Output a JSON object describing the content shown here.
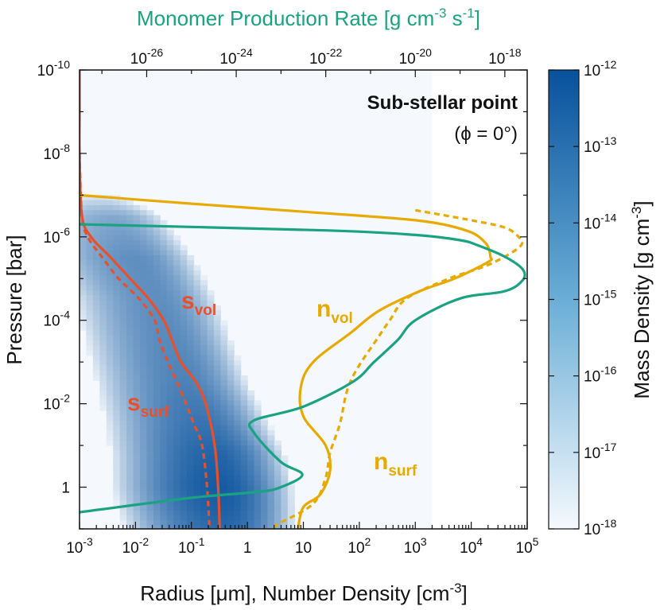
{
  "chart_data": {
    "type": "line",
    "annotation_title": "Sub-stellar point",
    "annotation_subtitle": "(ϕ = 0°)",
    "xlabel_bottom": "Radius [μm], Number Density [cm-3]",
    "xlabel_bottom_parts": {
      "main": "Radius [μm], Number Density [cm",
      "sup": "-3",
      "end": "]"
    },
    "xlabel_top_parts": {
      "main": "Monomer Production Rate [g cm",
      "sup1": "-3",
      "mid": " s",
      "sup2": "-1",
      "end": "]"
    },
    "ylabel": "Pressure [bar]",
    "colorbar_label_parts": {
      "main": "Mass Density [g cm",
      "sup": "-3",
      "end": "]"
    },
    "x_bottom": {
      "scale": "log",
      "range": [
        0.001,
        100000
      ],
      "ticks": [
        {
          "value": 0.001,
          "base": "10",
          "exp": "-3"
        },
        {
          "value": 0.01,
          "base": "10",
          "exp": "-2"
        },
        {
          "value": 0.1,
          "base": "10",
          "exp": "-1"
        },
        {
          "value": 1,
          "base": "1",
          "exp": ""
        },
        {
          "value": 10,
          "base": "10",
          "exp": ""
        },
        {
          "value": 100,
          "base": "10",
          "exp": "2"
        },
        {
          "value": 1000,
          "base": "10",
          "exp": "3"
        },
        {
          "value": 10000,
          "base": "10",
          "exp": "4"
        },
        {
          "value": 100000,
          "base": "10",
          "exp": "5"
        }
      ]
    },
    "x_top": {
      "scale": "log",
      "range": [
        3.16e-28,
        3.16e-18
      ],
      "ticks": [
        {
          "value": 1e-26,
          "base": "10",
          "exp": "-26"
        },
        {
          "value": 1e-24,
          "base": "10",
          "exp": "-24"
        },
        {
          "value": 1e-22,
          "base": "10",
          "exp": "-22"
        },
        {
          "value": 1e-20,
          "base": "10",
          "exp": "-20"
        },
        {
          "value": 1e-18,
          "base": "10",
          "exp": "-18"
        }
      ]
    },
    "y": {
      "scale": "log",
      "inverted": true,
      "range": [
        1e-10,
        10
      ],
      "ticks": [
        {
          "value": 1e-10,
          "base": "10",
          "exp": "-10"
        },
        {
          "value": 1e-08,
          "base": "10",
          "exp": "-8"
        },
        {
          "value": 1e-06,
          "base": "10",
          "exp": "-6"
        },
        {
          "value": 0.0001,
          "base": "10",
          "exp": "-4"
        },
        {
          "value": 0.01,
          "base": "10",
          "exp": "-2"
        },
        {
          "value": 1,
          "base": "1",
          "exp": ""
        }
      ]
    },
    "colorbar": {
      "scale": "log",
      "range": [
        1e-18,
        1e-12
      ],
      "colors": [
        "#f5f9fd",
        "#08519c"
      ],
      "ticks": [
        {
          "value": 1e-12,
          "base": "10",
          "exp": "-12"
        },
        {
          "value": 1e-13,
          "base": "10",
          "exp": "-13"
        },
        {
          "value": 1e-14,
          "base": "10",
          "exp": "-14"
        },
        {
          "value": 1e-15,
          "base": "10",
          "exp": "-15"
        },
        {
          "value": 1e-16,
          "base": "10",
          "exp": "-16"
        },
        {
          "value": 1e-17,
          "base": "10",
          "exp": "-17"
        },
        {
          "value": 1e-18,
          "base": "10",
          "exp": "-18"
        }
      ]
    },
    "heatmap": {
      "bin_size_dex": 0.12,
      "floor_value": 1e-18,
      "x_range_log": [
        -3,
        3.3
      ],
      "p_range_log": [
        -10,
        1
      ],
      "ridge": [
        {
          "logp": -7.2,
          "logr": -2.8,
          "logrho": -18.5
        },
        {
          "logp": -6.5,
          "logr": -2.4,
          "logrho": -15.5
        },
        {
          "logp": -5.5,
          "logr": -2.0,
          "logrho": -14.5
        },
        {
          "logp": -4.5,
          "logr": -1.6,
          "logrho": -14.5
        },
        {
          "logp": -3.5,
          "logr": -1.35,
          "logrho": -14.3
        },
        {
          "logp": -2.5,
          "logr": -1.1,
          "logrho": -14.0
        },
        {
          "logp": -1.5,
          "logr": -0.8,
          "logrho": -13.4
        },
        {
          "logp": -0.8,
          "logr": -0.6,
          "logrho": -12.8
        },
        {
          "logp": 0.0,
          "logr": -0.5,
          "logrho": -12.4
        },
        {
          "logp": 0.5,
          "logr": -0.45,
          "logrho": -12.6
        },
        {
          "logp": 1.0,
          "logr": -0.4,
          "logrho": -13.0
        }
      ]
    },
    "series": [
      {
        "label": "s",
        "sub": "vol",
        "color": "#e8502a",
        "dash": "solid",
        "axis": "bottom",
        "points": [
          [
            0.001,
            1e-10
          ],
          [
            0.001,
            1e-09
          ],
          [
            0.001,
            1e-08
          ],
          [
            0.0011,
            3e-07
          ],
          [
            0.0016,
            1e-06
          ],
          [
            0.0035,
            3e-06
          ],
          [
            0.008,
            1e-05
          ],
          [
            0.017,
            3e-05
          ],
          [
            0.032,
            0.0001
          ],
          [
            0.045,
            0.0003
          ],
          [
            0.065,
            0.001
          ],
          [
            0.12,
            0.003
          ],
          [
            0.18,
            0.01
          ],
          [
            0.26,
            0.1
          ],
          [
            0.3,
            1
          ],
          [
            0.32,
            10
          ]
        ]
      },
      {
        "label": "s",
        "sub": "surf",
        "color": "#e8502a",
        "dash": "dotted",
        "axis": "bottom",
        "points": [
          [
            0.001,
            1e-08
          ],
          [
            0.0011,
            3e-07
          ],
          [
            0.0014,
            1e-06
          ],
          [
            0.0025,
            3e-06
          ],
          [
            0.005,
            1e-05
          ],
          [
            0.0115,
            3e-05
          ],
          [
            0.022,
            0.0001
          ],
          [
            0.027,
            0.0003
          ],
          [
            0.038,
            0.001
          ],
          [
            0.055,
            0.003
          ],
          [
            0.08,
            0.01
          ],
          [
            0.11,
            0.03
          ],
          [
            0.155,
            0.1
          ],
          [
            0.19,
            1
          ],
          [
            0.21,
            10
          ]
        ]
      },
      {
        "label": "n",
        "sub": "vol",
        "color": "#e8aa00",
        "dash": "solid",
        "axis": "bottom",
        "points": [
          [
            0.001,
            1e-07
          ],
          [
            0.1,
            1.6e-07
          ],
          [
            10,
            2.5e-07
          ],
          [
            1000,
            4e-07
          ],
          [
            8000,
            7e-07
          ],
          [
            18000,
            1.4e-06
          ],
          [
            22000,
            3e-06
          ],
          [
            20000,
            4e-06
          ],
          [
            5000,
            1e-05
          ],
          [
            1200,
            2e-05
          ],
          [
            220,
            6e-05
          ],
          [
            70,
            0.0002
          ],
          [
            15,
            0.001
          ],
          [
            9,
            0.004
          ],
          [
            10,
            0.02
          ],
          [
            25,
            0.1
          ],
          [
            30,
            0.4
          ],
          [
            20,
            1.5
          ],
          [
            10,
            3
          ],
          [
            8,
            10
          ]
        ]
      },
      {
        "label": "n",
        "sub": "surf",
        "color": "#e8aa00",
        "dash": "dotted",
        "axis": "bottom",
        "points": [
          [
            1000,
            2.3e-07
          ],
          [
            10000,
            4e-07
          ],
          [
            40000,
            6e-07
          ],
          [
            70000,
            1e-06
          ],
          [
            80000,
            1.5e-06
          ],
          [
            50000,
            2.5e-06
          ],
          [
            18000,
            5e-06
          ],
          [
            4000,
            1e-05
          ],
          [
            700,
            3e-05
          ],
          [
            350,
            0.0001
          ],
          [
            200,
            0.0003
          ],
          [
            90,
            0.0015
          ],
          [
            60,
            0.005
          ],
          [
            45,
            0.03
          ],
          [
            30,
            0.15
          ],
          [
            25,
            0.6
          ],
          [
            15,
            2.5
          ],
          [
            4,
            7
          ],
          [
            2.5,
            10
          ]
        ]
      },
      {
        "color": "#1aa283",
        "dash": "solid",
        "axis": "top",
        "points": [
          [
            3.16e-28,
            5e-07
          ],
          [
            1e-22,
            7e-07
          ],
          [
            1e-20,
            9e-07
          ],
          [
            1e-19,
            1.2e-06
          ],
          [
            2.5e-19,
            1.6e-06
          ],
          [
            1e-18,
            3e-06
          ],
          [
            2.5e-18,
            6e-06
          ],
          [
            2.5e-18,
            1.1e-05
          ],
          [
            1e-18,
            2e-05
          ],
          [
            1e-19,
            3e-05
          ],
          [
            1e-20,
            0.0001
          ],
          [
            4e-21,
            0.0003
          ],
          [
            1.2e-21,
            0.001
          ],
          [
            4e-22,
            0.003
          ],
          [
            3e-23,
            0.012
          ],
          [
            2.5e-24,
            0.025
          ],
          [
            2.5e-24,
            0.05
          ],
          [
            1e-23,
            0.25
          ],
          [
            3e-23,
            0.5
          ],
          [
            1e-23,
            1
          ],
          [
            3e-24,
            1.3
          ],
          [
            1e-25,
            1.8
          ],
          [
            3.16e-28,
            4
          ]
        ]
      }
    ]
  }
}
